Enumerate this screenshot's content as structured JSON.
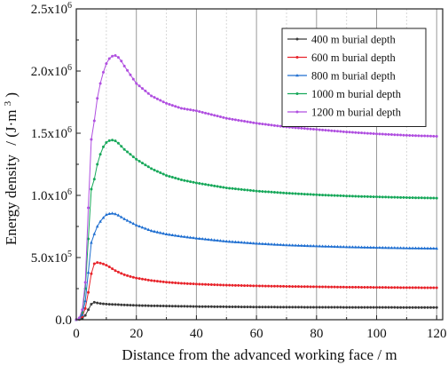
{
  "chart_data": {
    "type": "line",
    "xlabel": "Distance from the advanced working face / m",
    "ylabel_main": "Energy density",
    "ylabel_unit": "/ (J·m",
    "ylabel_unit_exp": "3",
    "ylabel_unit_close": ")",
    "xlim": [
      0,
      122
    ],
    "ylim": [
      0,
      2500000
    ],
    "x_ticks": [
      0,
      20,
      40,
      60,
      80,
      100,
      120
    ],
    "x_tick_labels": [
      "0",
      "20",
      "40",
      "60",
      "80",
      "100",
      "120"
    ],
    "y_ticks": [
      {
        "value": 0,
        "base": "0.0",
        "exp": ""
      },
      {
        "value": 500000,
        "base": "5.0x10",
        "exp": "5"
      },
      {
        "value": 1000000,
        "base": "1.0x10",
        "exp": "6"
      },
      {
        "value": 1500000,
        "base": "1.5x10",
        "exp": "6"
      },
      {
        "value": 2000000,
        "base": "2.0x10",
        "exp": "6"
      },
      {
        "value": 2500000,
        "base": "2.5x10",
        "exp": "6"
      }
    ],
    "grid": "vertical",
    "legend_position": "top-right",
    "series": [
      {
        "name": "400 m burial depth",
        "color": "#3a3a3a",
        "marker": "circle",
        "points": [
          [
            0,
            0
          ],
          [
            1,
            2000
          ],
          [
            2,
            10000
          ],
          [
            3,
            35000
          ],
          [
            4,
            80000
          ],
          [
            5,
            125000
          ],
          [
            6,
            140000
          ],
          [
            8,
            130000
          ],
          [
            10,
            126000
          ],
          [
            12,
            123000
          ],
          [
            14,
            121000
          ],
          [
            16,
            119000
          ],
          [
            18,
            117000
          ],
          [
            20,
            115000
          ],
          [
            25,
            112000
          ],
          [
            30,
            110000
          ],
          [
            35,
            108000
          ],
          [
            40,
            106000
          ],
          [
            50,
            104000
          ],
          [
            60,
            102000
          ],
          [
            70,
            101000
          ],
          [
            80,
            100000
          ],
          [
            90,
            99500
          ],
          [
            100,
            99000
          ],
          [
            110,
            98500
          ],
          [
            120,
            98000
          ]
        ]
      },
      {
        "name": "600 m burial depth",
        "color": "#e8242b",
        "marker": "circle",
        "points": [
          [
            0,
            0
          ],
          [
            1,
            5000
          ],
          [
            2,
            25000
          ],
          [
            3,
            90000
          ],
          [
            4,
            220000
          ],
          [
            5,
            370000
          ],
          [
            6,
            450000
          ],
          [
            7,
            460000
          ],
          [
            8,
            455000
          ],
          [
            9,
            448000
          ],
          [
            10,
            438000
          ],
          [
            11,
            425000
          ],
          [
            12,
            410000
          ],
          [
            13,
            395000
          ],
          [
            14,
            383000
          ],
          [
            15,
            372000
          ],
          [
            16,
            362000
          ],
          [
            18,
            347000
          ],
          [
            20,
            335000
          ],
          [
            25,
            315000
          ],
          [
            30,
            302000
          ],
          [
            35,
            293000
          ],
          [
            40,
            287000
          ],
          [
            50,
            278000
          ],
          [
            60,
            272000
          ],
          [
            70,
            268000
          ],
          [
            80,
            265000
          ],
          [
            90,
            262000
          ],
          [
            100,
            260000
          ],
          [
            110,
            258000
          ],
          [
            120,
            257000
          ]
        ]
      },
      {
        "name": "800 m burial depth",
        "color": "#1f6fd1",
        "marker": "triangle",
        "points": [
          [
            0,
            0
          ],
          [
            1,
            8000
          ],
          [
            2,
            40000
          ],
          [
            3,
            150000
          ],
          [
            4,
            380000
          ],
          [
            5,
            620000
          ],
          [
            6,
            690000
          ],
          [
            7,
            750000
          ],
          [
            8,
            790000
          ],
          [
            9,
            820000
          ],
          [
            10,
            845000
          ],
          [
            11,
            852000
          ],
          [
            12,
            855000
          ],
          [
            13,
            850000
          ],
          [
            14,
            840000
          ],
          [
            15,
            825000
          ],
          [
            16,
            810000
          ],
          [
            18,
            785000
          ],
          [
            20,
            760000
          ],
          [
            25,
            715000
          ],
          [
            30,
            688000
          ],
          [
            35,
            670000
          ],
          [
            40,
            655000
          ],
          [
            50,
            630000
          ],
          [
            60,
            613000
          ],
          [
            70,
            600000
          ],
          [
            80,
            592000
          ],
          [
            90,
            585000
          ],
          [
            100,
            580000
          ],
          [
            110,
            576000
          ],
          [
            120,
            573000
          ]
        ]
      },
      {
        "name": "1000 m burial depth",
        "color": "#17a85a",
        "marker": "circle",
        "points": [
          [
            0,
            0
          ],
          [
            1,
            10000
          ],
          [
            2,
            60000
          ],
          [
            3,
            250000
          ],
          [
            4,
            650000
          ],
          [
            5,
            1050000
          ],
          [
            6,
            1130000
          ],
          [
            7,
            1250000
          ],
          [
            8,
            1330000
          ],
          [
            9,
            1390000
          ],
          [
            10,
            1425000
          ],
          [
            11,
            1440000
          ],
          [
            12,
            1445000
          ],
          [
            13,
            1438000
          ],
          [
            14,
            1420000
          ],
          [
            15,
            1395000
          ],
          [
            16,
            1370000
          ],
          [
            18,
            1330000
          ],
          [
            20,
            1290000
          ],
          [
            25,
            1215000
          ],
          [
            30,
            1160000
          ],
          [
            35,
            1125000
          ],
          [
            40,
            1100000
          ],
          [
            50,
            1060000
          ],
          [
            60,
            1035000
          ],
          [
            70,
            1018000
          ],
          [
            80,
            1005000
          ],
          [
            90,
            995000
          ],
          [
            100,
            988000
          ],
          [
            110,
            982000
          ],
          [
            120,
            978000
          ]
        ]
      },
      {
        "name": "1200 m burial depth",
        "color": "#b04fe0",
        "marker": "circle",
        "points": [
          [
            0,
            0
          ],
          [
            1,
            15000
          ],
          [
            2,
            80000
          ],
          [
            3,
            300000
          ],
          [
            4,
            900000
          ],
          [
            5,
            1450000
          ],
          [
            6,
            1600000
          ],
          [
            7,
            1780000
          ],
          [
            8,
            1900000
          ],
          [
            9,
            1990000
          ],
          [
            10,
            2060000
          ],
          [
            11,
            2100000
          ],
          [
            12,
            2120000
          ],
          [
            13,
            2125000
          ],
          [
            14,
            2110000
          ],
          [
            15,
            2080000
          ],
          [
            16,
            2040000
          ],
          [
            18,
            1970000
          ],
          [
            20,
            1900000
          ],
          [
            25,
            1800000
          ],
          [
            30,
            1740000
          ],
          [
            35,
            1700000
          ],
          [
            40,
            1680000
          ],
          [
            50,
            1620000
          ],
          [
            60,
            1580000
          ],
          [
            70,
            1550000
          ],
          [
            80,
            1530000
          ],
          [
            90,
            1510000
          ],
          [
            100,
            1495000
          ],
          [
            110,
            1483000
          ],
          [
            120,
            1475000
          ]
        ]
      }
    ]
  }
}
